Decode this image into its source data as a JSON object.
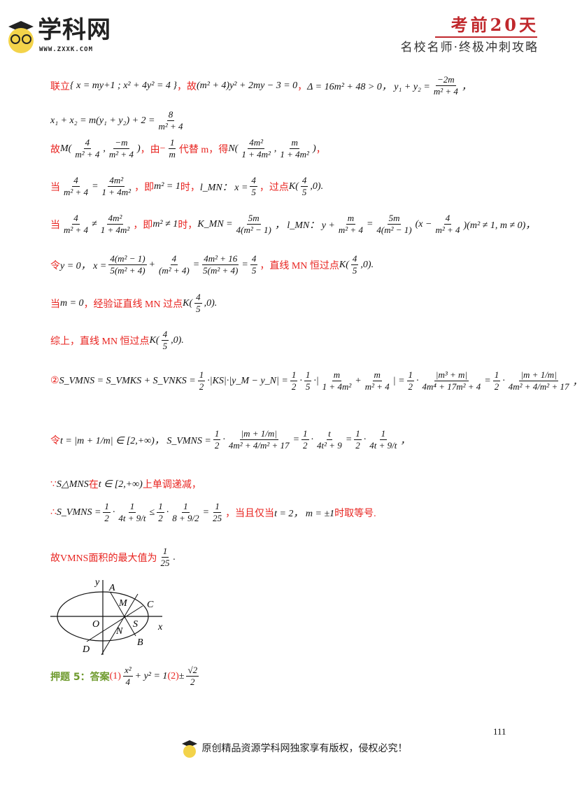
{
  "header": {
    "logo_text": "学科网",
    "logo_url": "WWW.ZXXK.COM",
    "title": "考前20天",
    "subtitle": "名校名师·终极冲刺攻略"
  },
  "lines": [
    [
      {
        "c": "red",
        "v": "联立"
      },
      {
        "c": "black",
        "v": "{ x = my+1 ; x² + 4y² = 4 }"
      },
      {
        "c": "red",
        "v": "，故"
      },
      {
        "c": "black",
        "v": "(m² + 4)y² + 2my − 3 = 0"
      },
      {
        "c": "red",
        "v": "，"
      },
      {
        "c": "black",
        "v": "Δ = 16m² + 48 > 0，  y₁ + y₂ ="
      },
      {
        "f": [
          "−2m",
          "m² + 4"
        ]
      },
      {
        "c": "black",
        "v": "，"
      }
    ],
    [
      {
        "c": "black",
        "v": "x₁ + x₂ = m(y₁ + y₂) + 2 ="
      },
      {
        "f": [
          "8",
          "m² + 4"
        ]
      }
    ],
    [
      {
        "c": "red",
        "v": "故"
      },
      {
        "c": "black",
        "v": "M("
      },
      {
        "f": [
          "4",
          "m² + 4"
        ]
      },
      {
        "c": "black",
        "v": ","
      },
      {
        "f": [
          "−m",
          "m² + 4"
        ]
      },
      {
        "c": "black",
        "v": ")"
      },
      {
        "c": "red",
        "v": "，由"
      },
      {
        "c": "red",
        "v": "−"
      },
      {
        "f": [
          "1",
          "m"
        ]
      },
      {
        "c": "red",
        "v": "代替 m，得"
      },
      {
        "c": "black",
        "v": "N("
      },
      {
        "f": [
          "4m²",
          "1 + 4m²"
        ]
      },
      {
        "c": "black",
        "v": ","
      },
      {
        "f": [
          "m",
          "1 + 4m²"
        ]
      },
      {
        "c": "black",
        "v": ")"
      },
      {
        "c": "red",
        "v": "，"
      }
    ],
    [
      {
        "c": "red",
        "v": "当"
      },
      {
        "f": [
          "4",
          "m² + 4"
        ]
      },
      {
        "c": "black",
        "v": "="
      },
      {
        "f": [
          "4m²",
          "1 + 4m²"
        ]
      },
      {
        "c": "red",
        "v": "，即"
      },
      {
        "c": "black",
        "v": "m² = 1"
      },
      {
        "c": "red",
        "v": "时，"
      },
      {
        "c": "black",
        "v": "l_MN：  x ="
      },
      {
        "f": [
          "4",
          "5"
        ]
      },
      {
        "c": "red",
        "v": "，过点"
      },
      {
        "c": "black",
        "v": "K("
      },
      {
        "f": [
          "4",
          "5"
        ]
      },
      {
        "c": "black",
        "v": ",0)."
      }
    ],
    [
      {
        "c": "red",
        "v": "当"
      },
      {
        "f": [
          "4",
          "m² + 4"
        ]
      },
      {
        "c": "black",
        "v": "≠"
      },
      {
        "f": [
          "4m²",
          "1 + 4m²"
        ]
      },
      {
        "c": "red",
        "v": "，即"
      },
      {
        "c": "black",
        "v": "m² ≠ 1"
      },
      {
        "c": "red",
        "v": "时，"
      },
      {
        "c": "black",
        "v": "K_MN ="
      },
      {
        "f": [
          "5m",
          "4(m² − 1)"
        ]
      },
      {
        "c": "black",
        "v": "，  l_MN：  y +"
      },
      {
        "f": [
          "m",
          "m² + 4"
        ]
      },
      {
        "c": "black",
        "v": "="
      },
      {
        "f": [
          "5m",
          "4(m² − 1)"
        ]
      },
      {
        "c": "black",
        "v": "(x −"
      },
      {
        "f": [
          "4",
          "m² + 4"
        ]
      },
      {
        "c": "black",
        "v": ")(m² ≠ 1, m ≠ 0)，"
      }
    ],
    [
      {
        "c": "red",
        "v": "令"
      },
      {
        "c": "black",
        "v": "y = 0，  x ="
      },
      {
        "f": [
          "4(m² − 1)",
          "5(m² + 4)"
        ]
      },
      {
        "c": "black",
        "v": "+"
      },
      {
        "f": [
          "4",
          "(m² + 4)"
        ]
      },
      {
        "c": "black",
        "v": "="
      },
      {
        "f": [
          "4m² + 16",
          "5(m² + 4)"
        ]
      },
      {
        "c": "black",
        "v": "="
      },
      {
        "f": [
          "4",
          "5"
        ]
      },
      {
        "c": "red",
        "v": "，直线 MN 恒过点"
      },
      {
        "c": "black",
        "v": "K("
      },
      {
        "f": [
          "4",
          "5"
        ]
      },
      {
        "c": "black",
        "v": ",0)."
      }
    ],
    [
      {
        "c": "red",
        "v": "当"
      },
      {
        "c": "black",
        "v": "m = 0"
      },
      {
        "c": "red",
        "v": "，经验证直线 MN 过点"
      },
      {
        "c": "black",
        "v": "K("
      },
      {
        "f": [
          "4",
          "5"
        ]
      },
      {
        "c": "black",
        "v": ",0)."
      }
    ],
    [
      {
        "c": "red",
        "v": "综上，直线 MN 恒过点"
      },
      {
        "c": "black",
        "v": "K("
      },
      {
        "f": [
          "4",
          "5"
        ]
      },
      {
        "c": "black",
        "v": ",0)."
      }
    ],
    [
      {
        "c": "red",
        "v": "②"
      },
      {
        "c": "black",
        "v": "S_VMNS = S_VMKS + S_VNKS ="
      },
      {
        "f": [
          "1",
          "2"
        ]
      },
      {
        "c": "black",
        "v": "·|KS|·|y_M − y_N| ="
      },
      {
        "f": [
          "1",
          "2"
        ]
      },
      {
        "c": "black",
        "v": "·"
      },
      {
        "f": [
          "1",
          "5"
        ]
      },
      {
        "c": "black",
        "v": "·|"
      },
      {
        "f": [
          "m",
          "1 + 4m²"
        ]
      },
      {
        "c": "black",
        "v": "+"
      },
      {
        "f": [
          "m",
          "m² + 4"
        ]
      },
      {
        "c": "black",
        "v": "| ="
      },
      {
        "f": [
          "1",
          "2"
        ]
      },
      {
        "c": "black",
        "v": "·"
      },
      {
        "f": [
          "|m³ + m|",
          "4m⁴ + 17m² + 4"
        ]
      },
      {
        "c": "black",
        "v": "="
      },
      {
        "f": [
          "1",
          "2"
        ]
      },
      {
        "c": "black",
        "v": "·"
      },
      {
        "f": [
          "|m + 1/m|",
          "4m² + 4/m² + 17"
        ]
      },
      {
        "c": "black",
        "v": "，"
      }
    ],
    [
      {
        "c": "red",
        "v": "令"
      },
      {
        "c": "black",
        "v": "t = |m + 1/m| ∈ [2,+∞)，  S_VMNS ="
      },
      {
        "f": [
          "1",
          "2"
        ]
      },
      {
        "c": "black",
        "v": "·"
      },
      {
        "f": [
          "|m + 1/m|",
          "4m² + 4/m² + 17"
        ]
      },
      {
        "c": "black",
        "v": "="
      },
      {
        "f": [
          "1",
          "2"
        ]
      },
      {
        "c": "black",
        "v": "·"
      },
      {
        "f": [
          "t",
          "4t² + 9"
        ]
      },
      {
        "c": "black",
        "v": "="
      },
      {
        "f": [
          "1",
          "2"
        ]
      },
      {
        "c": "black",
        "v": "·"
      },
      {
        "f": [
          "1",
          "4t + 9/t"
        ]
      },
      {
        "c": "black",
        "v": "，"
      }
    ],
    [
      {
        "c": "red",
        "v": "∵"
      },
      {
        "c": "black",
        "v": "S△MNS"
      },
      {
        "c": "red",
        "v": "在"
      },
      {
        "c": "black",
        "v": "t ∈ [2,+∞)"
      },
      {
        "c": "red",
        "v": "上单调递减，"
      }
    ],
    [
      {
        "c": "red",
        "v": "∴"
      },
      {
        "c": "black",
        "v": "S_VMNS ="
      },
      {
        "f": [
          "1",
          "2"
        ]
      },
      {
        "c": "black",
        "v": "·"
      },
      {
        "f": [
          "1",
          "4t + 9/t"
        ]
      },
      {
        "c": "black",
        "v": "≤"
      },
      {
        "f": [
          "1",
          "2"
        ]
      },
      {
        "c": "black",
        "v": "·"
      },
      {
        "f": [
          "1",
          "8 + 9/2"
        ]
      },
      {
        "c": "black",
        "v": "="
      },
      {
        "f": [
          "1",
          "25"
        ]
      },
      {
        "c": "red",
        "v": "，当且仅当"
      },
      {
        "c": "black",
        "v": "t = 2，  m = ±1"
      },
      {
        "c": "red",
        "v": "时取等号."
      }
    ],
    [
      {
        "c": "red",
        "v": "故VMNS面积的最大值为"
      },
      {
        "f": [
          "1",
          "25"
        ]
      },
      {
        "c": "black",
        "v": "."
      }
    ]
  ],
  "figure": {
    "labels": [
      "y",
      "A",
      "M",
      "C",
      "O",
      "S",
      "x",
      "N",
      "B",
      "D"
    ]
  },
  "answer": [
    {
      "c": "green",
      "v": "押题 5：答案"
    },
    {
      "c": "red",
      "v": "(1)"
    },
    {
      "f": [
        "x²",
        "4"
      ]
    },
    {
      "c": "black",
      "v": "+ y² = 1"
    },
    {
      "c": "red",
      "v": "(2)"
    },
    {
      "c": "black",
      "v": "±"
    },
    {
      "f": [
        "√2",
        "2"
      ]
    }
  ],
  "page_number": "111",
  "footer": "原创精品资源学科网独家享有版权，侵权必究！"
}
